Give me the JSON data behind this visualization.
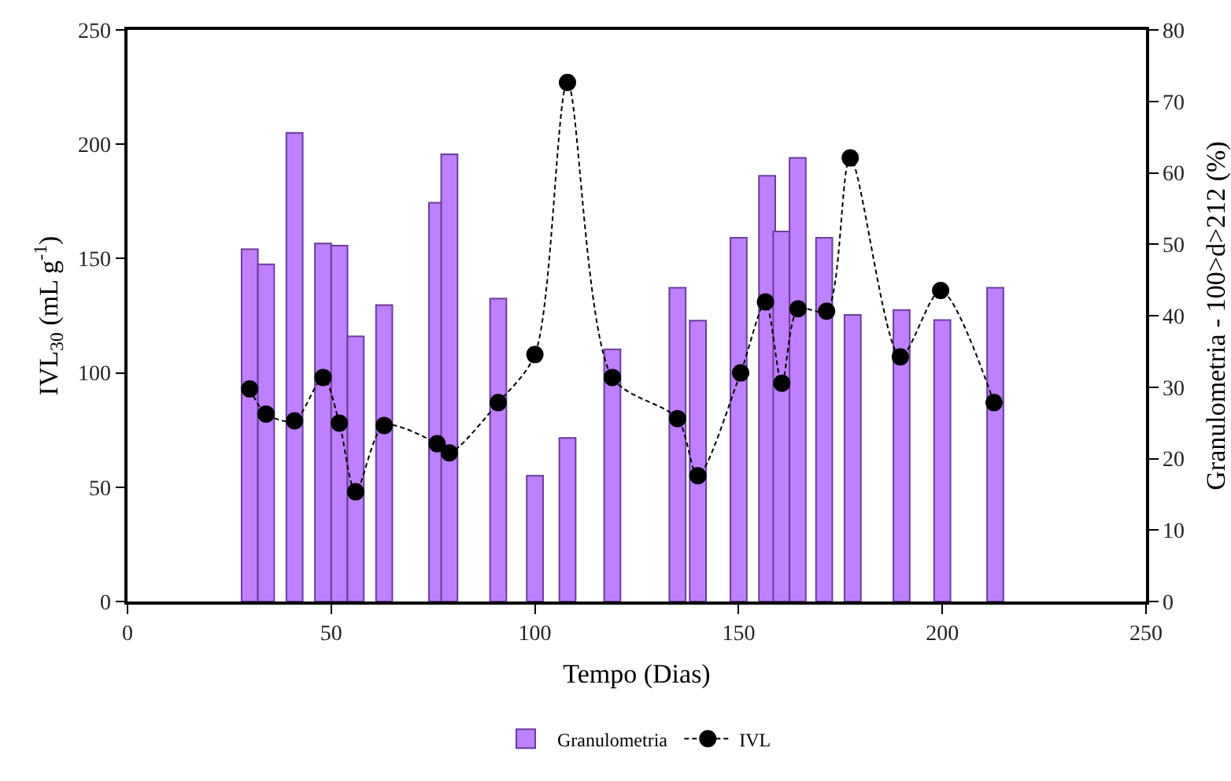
{
  "chart_data": {
    "type": "bar",
    "xlabel": "Tempo (Dias)",
    "ylabel": "IVL$_{30}$ (mL g$^{-1}$)",
    "y2label": "Granulometria - 100>d>212 (%)",
    "xlim": [
      0,
      250
    ],
    "xticks": [
      0,
      50,
      100,
      150,
      200,
      250
    ],
    "ylim": [
      0,
      250
    ],
    "yticks": [
      0,
      50,
      100,
      150,
      200,
      250
    ],
    "y2lim": [
      0,
      80
    ],
    "y2ticks": [
      0,
      10,
      20,
      30,
      40,
      50,
      60,
      70,
      80
    ],
    "grid": false,
    "legend": "bottom",
    "series": [
      {
        "name": "Granulometria",
        "axis": "y2",
        "color": "#bf80ff",
        "x": [
          30,
          34,
          41,
          48,
          52,
          56,
          63,
          76,
          79,
          91,
          100,
          108,
          119,
          135,
          140,
          150,
          157,
          160.5,
          164.5,
          171,
          178,
          190,
          200,
          213
        ],
        "values": [
          49.3,
          47.2,
          65.6,
          50.1,
          49.8,
          37.1,
          41.5,
          55.8,
          62.6,
          42.4,
          17.6,
          22.9,
          35.3,
          43.9,
          39.3,
          50.9,
          59.6,
          51.8,
          62.1,
          50.9,
          40.1,
          40.8,
          39.4,
          43.9
        ]
      },
      {
        "name": "IVL",
        "type": "line",
        "axis": "y",
        "color": "#000000",
        "marker": "circle",
        "line_style": "dashed",
        "x": [
          30,
          34,
          41,
          48,
          52,
          56,
          63,
          76,
          79,
          91,
          100,
          108,
          119,
          135,
          140,
          150.5,
          156.6,
          160.6,
          164.6,
          171.6,
          177.4,
          189.7,
          199.6,
          212.7
        ],
        "values": [
          93,
          82,
          79,
          98,
          78,
          48,
          77,
          69,
          65,
          87,
          108,
          227,
          98,
          80,
          55,
          100,
          131,
          95.5,
          128,
          127,
          194,
          107,
          136,
          87
        ]
      }
    ]
  }
}
